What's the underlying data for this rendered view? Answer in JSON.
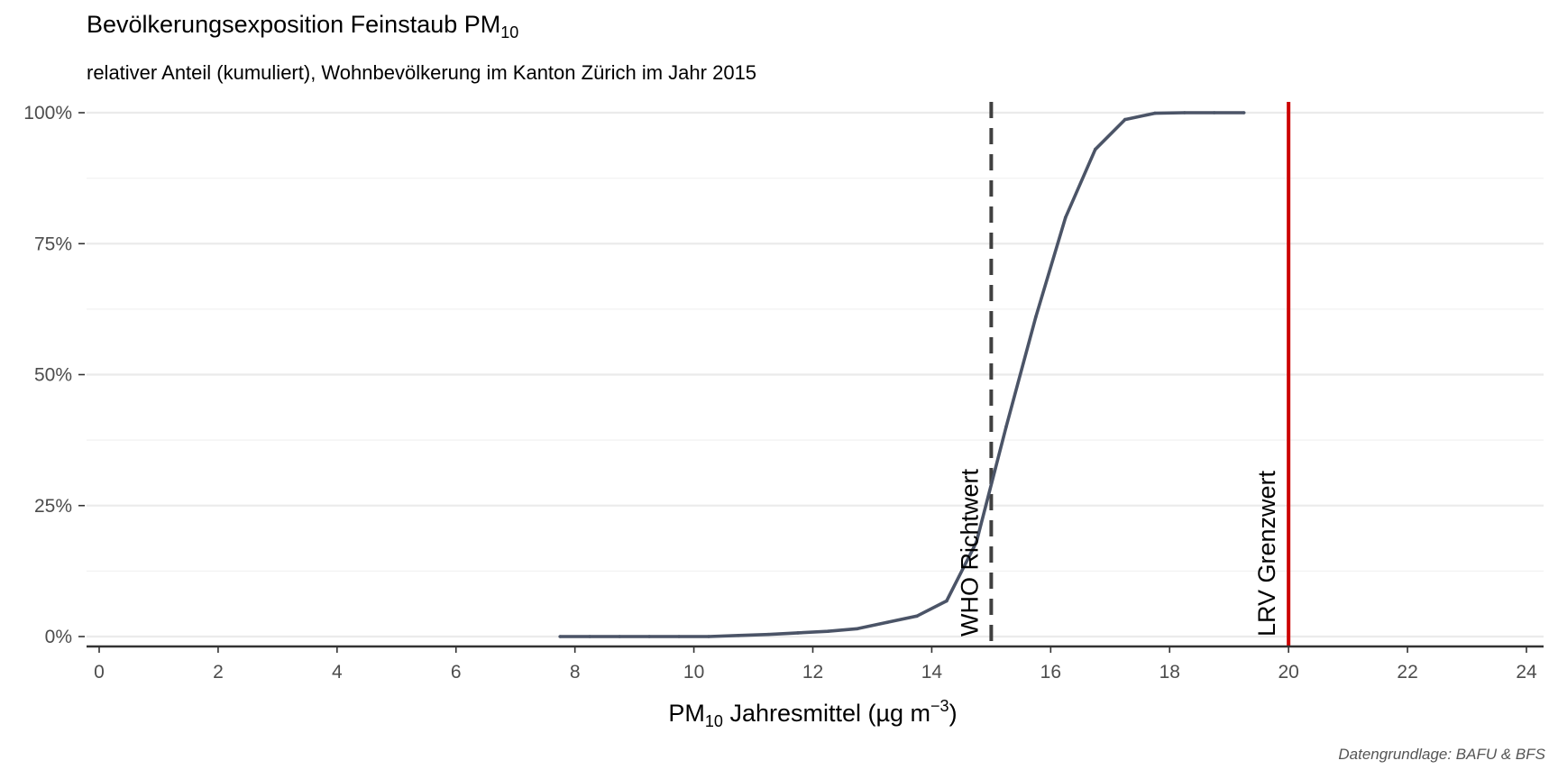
{
  "title": {
    "main": "Bevölkerungsexposition Feinstaub PM",
    "sub": "10"
  },
  "subtitle": "relativer Anteil (kumuliert), Wohnbevölkerung im Kanton Zürich im Jahr 2015",
  "caption": "Datengrundlage: BAFU & BFS",
  "colors": {
    "series": "#4b5467",
    "who_line": "#404040",
    "lrv_line": "#cc0000",
    "grid": "#ebebeb",
    "axis": "#333333"
  },
  "chart_data": {
    "type": "line",
    "xlabel": {
      "pre": "PM",
      "sub": "10",
      "mid": " Jahresmittel (µg m",
      "sup": "−3",
      "post": ")"
    },
    "ylabel": "",
    "xlim": [
      0,
      24
    ],
    "ylim": [
      0,
      1
    ],
    "x_ticks": [
      0,
      2,
      4,
      6,
      8,
      10,
      12,
      14,
      16,
      18,
      20,
      22,
      24
    ],
    "y_ticks": [
      0,
      0.25,
      0.5,
      0.75,
      1
    ],
    "y_tick_labels": [
      "0%",
      "25%",
      "50%",
      "75%",
      "100%"
    ],
    "grid": true,
    "series": [
      {
        "x": [
          7.75,
          8.25,
          8.75,
          9.25,
          9.75,
          10.25,
          10.75,
          11.25,
          11.75,
          12.25,
          12.75,
          13.25,
          13.75,
          14.25,
          14.75,
          15.25,
          15.75,
          16.25,
          16.75,
          17.25,
          17.75,
          18.25,
          18.75,
          19.25
        ],
        "y": [
          0.0,
          0.0,
          0.0,
          0.0,
          0.0,
          0.0,
          0.002,
          0.004,
          0.007,
          0.01,
          0.015,
          0.027,
          0.039,
          0.068,
          0.18,
          0.4,
          0.61,
          0.8,
          0.93,
          0.987,
          0.999,
          1.0,
          1.0,
          1.0
        ]
      }
    ],
    "reference_lines": [
      {
        "x": 15,
        "label": "WHO Richtwert",
        "style": "dashed"
      },
      {
        "x": 20,
        "label": "LRV Grenzwert",
        "style": "solid"
      }
    ]
  }
}
